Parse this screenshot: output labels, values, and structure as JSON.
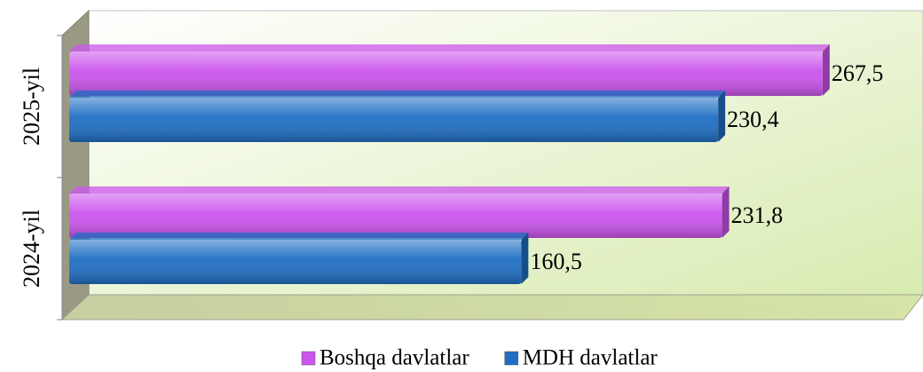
{
  "chart_data": {
    "type": "bar",
    "orientation": "horizontal",
    "categories": [
      "2024-yil",
      "2025-yil"
    ],
    "series": [
      {
        "name": "Boshqa davlatlar",
        "color": "#cc55ee",
        "values": [
          231.8,
          267.5
        ],
        "value_labels": [
          "231,8",
          "267,5"
        ]
      },
      {
        "name": "MDH davlatlar",
        "color": "#1f6fc4",
        "values": [
          160.5,
          230.4
        ],
        "value_labels": [
          "160,5",
          "230,4"
        ]
      }
    ],
    "xlim": [
      0,
      300
    ]
  }
}
